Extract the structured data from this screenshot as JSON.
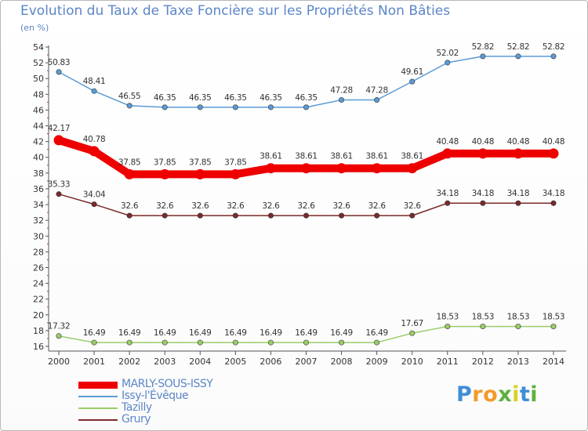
{
  "page": {
    "title": "Evolution du Taux de Taxe Foncière sur les Propriétés Non Bâties",
    "unit": "(en %)"
  },
  "logo": {
    "letters": [
      {
        "char": "P",
        "color": "#3f8fd4"
      },
      {
        "char": "r",
        "color": "#f39a2b"
      },
      {
        "char": "o",
        "color": "#f39a2b"
      },
      {
        "char": "x",
        "color": "#5bb23c"
      },
      {
        "char": "i",
        "color": "#d9d21f"
      },
      {
        "char": "t",
        "color": "#3f8fd4"
      },
      {
        "char": "i",
        "color": "#5bb23c"
      }
    ]
  },
  "chart_data": {
    "type": "line",
    "title": "Evolution du Taux de Taxe Foncière sur les Propriétés Non Bâties",
    "ylabel": "(en %)",
    "xlabel": "",
    "x": [
      "2000",
      "2001",
      "2002",
      "2003",
      "2004",
      "2005",
      "2006",
      "2007",
      "2008",
      "2009",
      "2010",
      "2011",
      "2012",
      "2013",
      "2014"
    ],
    "ylim": [
      16,
      54
    ],
    "yticks": [
      16,
      18,
      20,
      22,
      24,
      26,
      28,
      30,
      32,
      34,
      36,
      38,
      40,
      42,
      44,
      46,
      48,
      50,
      52,
      54
    ],
    "grid": false,
    "legend_position": "bottom-left",
    "series": [
      {
        "name": "MARLY-SOUS-ISSY",
        "color": "#ee0000",
        "emphasis": true,
        "values": [
          42.17,
          40.78,
          37.85,
          37.85,
          37.85,
          37.85,
          38.61,
          38.61,
          38.61,
          38.61,
          38.61,
          40.48,
          40.48,
          40.48,
          40.48
        ],
        "labels": [
          "42.17",
          "40.78",
          "37.85",
          "37.85",
          "37.85",
          "37.85",
          "38.61",
          "38.61",
          "38.61",
          "38.61",
          "38.61",
          "40.48",
          "40.48",
          "40.48",
          "40.48"
        ]
      },
      {
        "name": "Issy-l'Évêque",
        "color": "#5b9bd5",
        "emphasis": false,
        "values": [
          50.83,
          48.41,
          46.55,
          46.35,
          46.35,
          46.35,
          46.35,
          46.35,
          47.28,
          47.28,
          49.61,
          52.02,
          52.82,
          52.82,
          52.82
        ],
        "labels": [
          "50.83",
          "48.41",
          "46.55",
          "46.35",
          "46.35",
          "46.35",
          "46.35",
          "46.35",
          "47.28",
          "47.28",
          "49.61",
          "52.02",
          "52.82",
          "52.82",
          "52.82"
        ]
      },
      {
        "name": "Tazilly",
        "color": "#9acd6a",
        "emphasis": false,
        "values": [
          17.32,
          16.49,
          16.49,
          16.49,
          16.49,
          16.49,
          16.49,
          16.49,
          16.49,
          16.49,
          17.67,
          18.53,
          18.53,
          18.53,
          18.53
        ],
        "labels": [
          "17.32",
          "16.49",
          "16.49",
          "16.49",
          "16.49",
          "16.49",
          "16.49",
          "16.49",
          "16.49",
          "16.49",
          "17.67",
          "18.53",
          "18.53",
          "18.53",
          "18.53"
        ]
      },
      {
        "name": "Grury",
        "color": "#7b2a2a",
        "emphasis": false,
        "values": [
          35.33,
          34.04,
          32.6,
          32.6,
          32.6,
          32.6,
          32.6,
          32.6,
          32.6,
          32.6,
          32.6,
          34.18,
          34.18,
          34.18,
          34.18
        ],
        "labels": [
          "35.33",
          "34.04",
          "32.6",
          "32.6",
          "32.6",
          "32.6",
          "32.6",
          "32.6",
          "32.6",
          "32.6",
          "32.6",
          "34.18",
          "34.18",
          "34.18",
          "34.18"
        ]
      }
    ]
  }
}
